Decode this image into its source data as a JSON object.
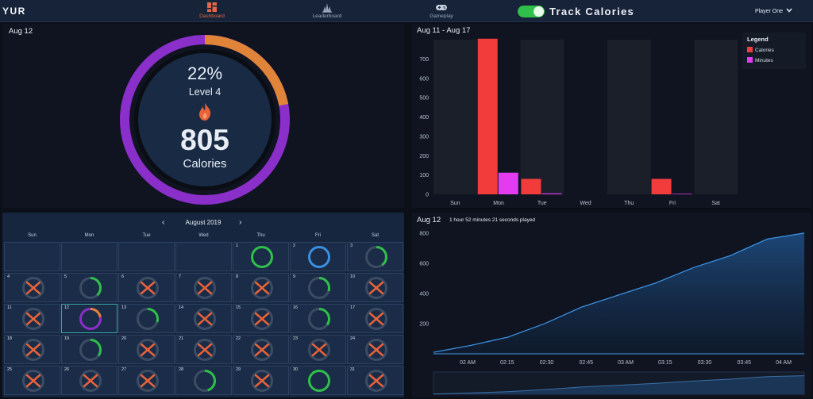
{
  "header": {
    "logo": "YUR",
    "nav": [
      {
        "label": "Dashboard",
        "icon": "dashboard-icon",
        "active": true
      },
      {
        "label": "Leaderboard",
        "icon": "leaderboard-icon",
        "active": false
      },
      {
        "label": "Gameplay",
        "icon": "gamepad-icon",
        "active": false
      }
    ],
    "toggle_on": true,
    "mode_title": "Track Calories",
    "player": "Player One"
  },
  "ring_panel": {
    "date": "Aug 12",
    "percent_label": "22%",
    "percent": 22,
    "level": "Level 4",
    "value": "805",
    "unit": "Calories",
    "colors": {
      "outer": "#8a2fc9",
      "progress": "#e0843a",
      "center": "#182a44",
      "flame": "#e8623a"
    }
  },
  "bar_panel": {
    "title": "Aug 11 - Aug 17",
    "legend_title": "Legend",
    "chart_data": {
      "type": "bar",
      "categories": [
        "Sun",
        "Mon",
        "Tue",
        "Wed",
        "Thu",
        "Fri",
        "Sat"
      ],
      "series": [
        {
          "name": "Calories",
          "color": "#f23c3c",
          "values": [
            0,
            805,
            80,
            0,
            0,
            80,
            0
          ]
        },
        {
          "name": "Minutes",
          "color": "#e43af0",
          "values": [
            0,
            112,
            5,
            0,
            0,
            3,
            0
          ]
        }
      ],
      "yticks": [
        "0",
        "100",
        "200",
        "300",
        "400",
        "500",
        "600",
        "700"
      ],
      "ylim": [
        0,
        800
      ]
    }
  },
  "calendar": {
    "month": "August 2019",
    "prev": "‹",
    "next": "›",
    "weekdays": [
      "Sun",
      "Mon",
      "Tue",
      "Wed",
      "Thu",
      "Fri",
      "Sat"
    ],
    "leading_empty": 4,
    "selected_day": 12,
    "days": [
      {
        "day": "1",
        "status": "full-green"
      },
      {
        "day": "2",
        "status": "full-blue"
      },
      {
        "day": "3",
        "status": "partial",
        "fraction": 0.4
      },
      {
        "day": "4",
        "status": "missed"
      },
      {
        "day": "5",
        "status": "partial",
        "fraction": 0.38
      },
      {
        "day": "6",
        "status": "missed"
      },
      {
        "day": "7",
        "status": "missed"
      },
      {
        "day": "8",
        "status": "missed"
      },
      {
        "day": "9",
        "status": "partial",
        "fraction": 0.3
      },
      {
        "day": "10",
        "status": "missed"
      },
      {
        "day": "11",
        "status": "missed"
      },
      {
        "day": "12",
        "status": "selected"
      },
      {
        "day": "13",
        "status": "partial",
        "fraction": 0.3
      },
      {
        "day": "14",
        "status": "missed"
      },
      {
        "day": "15",
        "status": "missed"
      },
      {
        "day": "16",
        "status": "partial",
        "fraction": 0.35
      },
      {
        "day": "17",
        "status": "missed"
      },
      {
        "day": "18",
        "status": "missed"
      },
      {
        "day": "19",
        "status": "partial",
        "fraction": 0.35
      },
      {
        "day": "20",
        "status": "missed"
      },
      {
        "day": "21",
        "status": "missed"
      },
      {
        "day": "22",
        "status": "missed"
      },
      {
        "day": "23",
        "status": "missed"
      },
      {
        "day": "24",
        "status": "missed"
      },
      {
        "day": "25",
        "status": "missed"
      },
      {
        "day": "26",
        "status": "missed"
      },
      {
        "day": "27",
        "status": "missed"
      },
      {
        "day": "28",
        "status": "partial",
        "fraction": 0.45
      },
      {
        "day": "29",
        "status": "missed"
      },
      {
        "day": "30",
        "status": "full-green"
      },
      {
        "day": "31",
        "status": "missed"
      }
    ],
    "colors": {
      "green": "#2fbf4a",
      "blue": "#3a8fe0",
      "cross": "#e8623a",
      "track": "#3c4c63"
    }
  },
  "line_panel": {
    "date": "Aug 12",
    "subtitle": "1 hour 52 minutes 21 seconds played",
    "chart_data": {
      "type": "area",
      "x": [
        "01:52",
        "02:00",
        "02:15",
        "02:30",
        "02:45",
        "03:00",
        "03:15",
        "03:30",
        "03:45",
        "04:00",
        "04:04"
      ],
      "values": [
        10,
        55,
        110,
        200,
        310,
        390,
        470,
        570,
        650,
        760,
        800
      ],
      "xticks": [
        "02 AM",
        "02:15",
        "02:30",
        "02:45",
        "03 AM",
        "03:15",
        "03:30",
        "03:45",
        "04 AM"
      ],
      "yticks": [
        "200",
        "400",
        "600",
        "800"
      ],
      "ylim": [
        0,
        820
      ],
      "color": "#3a8fe0"
    }
  }
}
